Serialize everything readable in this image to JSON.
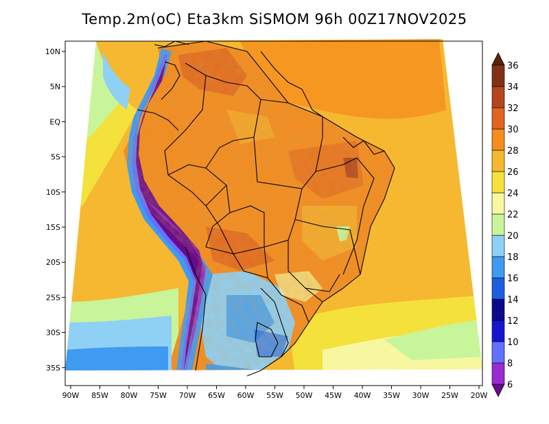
{
  "title": "Temp.2m(oC) Eta3km SiSMOM 96h 00Z17NOV2025",
  "map": {
    "lat_ticks": [
      "10N",
      "5N",
      "EQ",
      "5S",
      "10S",
      "15S",
      "20S",
      "25S",
      "30S",
      "35S"
    ],
    "lon_ticks": [
      "90W",
      "85W",
      "80W",
      "75W",
      "70W",
      "65W",
      "60W",
      "55W",
      "50W",
      "45W",
      "40W",
      "35W",
      "30W",
      "25W",
      "20W"
    ]
  },
  "colorbar": {
    "levels": [
      "6",
      "8",
      "10",
      "12",
      "14",
      "16",
      "18",
      "20",
      "22",
      "24",
      "26",
      "28",
      "30",
      "32",
      "34",
      "36"
    ],
    "colors": [
      "#6a0a8c",
      "#9a2bd0",
      "#6470ff",
      "#1515d0",
      "#0a0a8a",
      "#1e5fe0",
      "#3f9bf0",
      "#8fd0f5",
      "#c8f59a",
      "#f7f7a0",
      "#f5e13c",
      "#f5b830",
      "#f58c1e",
      "#e0641e",
      "#b4461e",
      "#823214",
      "#5a230a"
    ]
  }
}
